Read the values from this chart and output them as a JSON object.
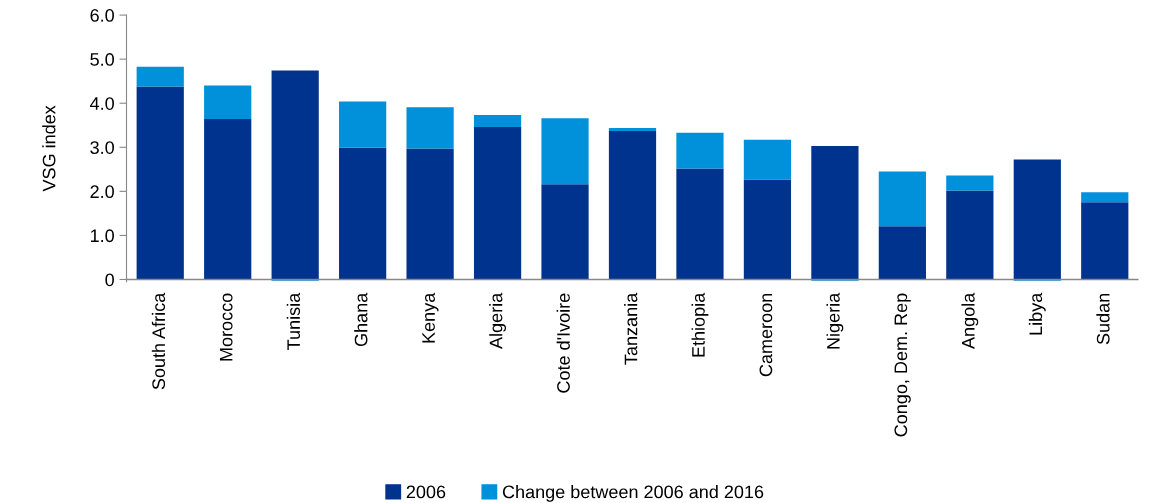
{
  "chart_data": {
    "type": "bar",
    "stacked": true,
    "ylabel": "VSG index",
    "categories": [
      "South Africa",
      "Morocco",
      "Tunisia",
      "Ghana",
      "Kenya",
      "Algeria",
      "Cote d'Ivoire",
      "Tanzania",
      "Ethiopia",
      "Cameroon",
      "Nigeria",
      "Congo, Dem. Rep",
      "Angola",
      "Libya",
      "Sudan"
    ],
    "series": [
      {
        "name": "2006",
        "color": "#00338d",
        "values": [
          4.38,
          3.64,
          4.74,
          2.99,
          2.97,
          3.46,
          2.16,
          3.37,
          2.52,
          2.27,
          3.03,
          1.21,
          2.02,
          2.72,
          1.75
        ]
      },
      {
        "name": "Change between 2006 and 2016",
        "color": "#0091da",
        "values": [
          0.45,
          0.76,
          -0.03,
          1.05,
          0.94,
          0.27,
          1.5,
          0.07,
          0.81,
          0.9,
          -0.03,
          1.24,
          0.34,
          -0.03,
          0.23
        ]
      }
    ],
    "ylim": [
      -0.05,
      6.0
    ],
    "yticks": [
      0,
      {
        "value": 1,
        "label": "1.0"
      },
      {
        "value": 2,
        "label": "2.0"
      },
      {
        "value": 3,
        "label": "3.0"
      },
      {
        "value": 4,
        "label": "4.0"
      },
      {
        "value": 5,
        "label": "5.0"
      },
      {
        "value": 6,
        "label": "6.0"
      }
    ],
    "grid": false,
    "legend": "bottom"
  }
}
